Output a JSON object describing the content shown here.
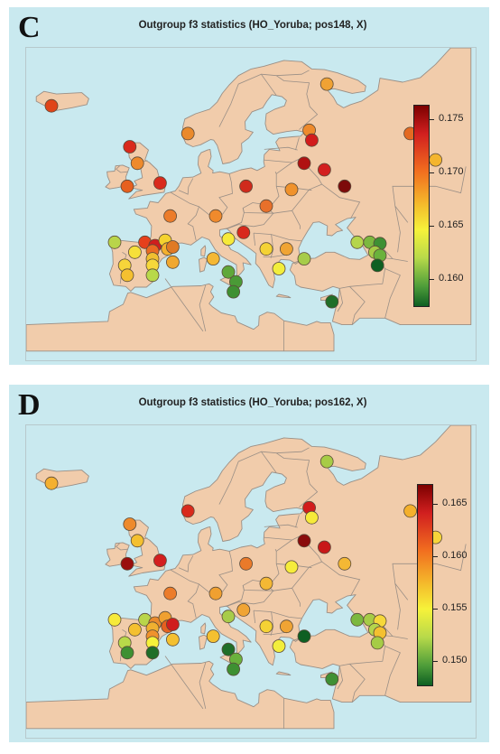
{
  "panels": [
    {
      "letter": "C",
      "title": "Outgroup f3 statistics (HO_Yoruba; pos148, X)",
      "legend": {
        "ticks": [
          "0.175",
          "0.170",
          "0.165",
          "0.160"
        ]
      },
      "points": [
        {
          "lon": -21.0,
          "lat": 64.2,
          "color": "#e04418"
        },
        {
          "lon": 33.5,
          "lat": 67.5,
          "color": "#f0a234"
        },
        {
          "lon": -5.5,
          "lat": 58.0,
          "color": "#d92a1c"
        },
        {
          "lon": 6.0,
          "lat": 60.0,
          "color": "#ea8a2c"
        },
        {
          "lon": -4.0,
          "lat": 55.5,
          "color": "#ee8a2c"
        },
        {
          "lon": 30.0,
          "lat": 60.5,
          "color": "#ee8a2c"
        },
        {
          "lon": 30.5,
          "lat": 59.0,
          "color": "#d21c1c"
        },
        {
          "lon": 50.0,
          "lat": 60.0,
          "color": "#e46a22"
        },
        {
          "lon": 29.0,
          "lat": 55.5,
          "color": "#b01212"
        },
        {
          "lon": 33.0,
          "lat": 54.5,
          "color": "#d31f1f"
        },
        {
          "lon": 37.0,
          "lat": 52.0,
          "color": "#7d0a0a"
        },
        {
          "lon": 55.0,
          "lat": 56.0,
          "color": "#f4b52e"
        },
        {
          "lon": -6.0,
          "lat": 52.0,
          "color": "#e6601f"
        },
        {
          "lon": 0.5,
          "lat": 52.5,
          "color": "#d92a1c"
        },
        {
          "lon": 17.5,
          "lat": 52.0,
          "color": "#d02a1c"
        },
        {
          "lon": 26.5,
          "lat": 51.5,
          "color": "#f0922c"
        },
        {
          "lon": 21.5,
          "lat": 49.0,
          "color": "#e8702a"
        },
        {
          "lon": 2.5,
          "lat": 47.5,
          "color": "#ec7c2a"
        },
        {
          "lon": 11.5,
          "lat": 47.5,
          "color": "#f08a2c"
        },
        {
          "lon": -8.5,
          "lat": 43.5,
          "color": "#b9d54a"
        },
        {
          "lon": -2.5,
          "lat": 43.5,
          "color": "#e6401c"
        },
        {
          "lon": -0.5,
          "lat": 43.0,
          "color": "#cf1e1e"
        },
        {
          "lon": 1.5,
          "lat": 43.8,
          "color": "#f4d22e"
        },
        {
          "lon": -1.0,
          "lat": 42.2,
          "color": "#ea6a22"
        },
        {
          "lon": 2.0,
          "lat": 42.5,
          "color": "#f4b02c"
        },
        {
          "lon": 3.0,
          "lat": 42.8,
          "color": "#e07a24"
        },
        {
          "lon": -4.5,
          "lat": 42.0,
          "color": "#f6e03a"
        },
        {
          "lon": -1.0,
          "lat": 41.0,
          "color": "#f0c030"
        },
        {
          "lon": -6.5,
          "lat": 40.0,
          "color": "#f6d53a"
        },
        {
          "lon": -6.0,
          "lat": 38.5,
          "color": "#f4c030"
        },
        {
          "lon": -1.0,
          "lat": 40.0,
          "color": "#f6d83a"
        },
        {
          "lon": -1.0,
          "lat": 38.5,
          "color": "#b8d94a"
        },
        {
          "lon": 3.0,
          "lat": 40.5,
          "color": "#f0a830"
        },
        {
          "lon": 14.0,
          "lat": 44.0,
          "color": "#f6ea3a"
        },
        {
          "lon": 17.0,
          "lat": 45.0,
          "color": "#d8281c"
        },
        {
          "lon": 11.0,
          "lat": 41.0,
          "color": "#f4b834"
        },
        {
          "lon": 14.0,
          "lat": 39.0,
          "color": "#5fa83a"
        },
        {
          "lon": 15.5,
          "lat": 37.5,
          "color": "#4a9a36"
        },
        {
          "lon": 15.0,
          "lat": 36.0,
          "color": "#3e9032"
        },
        {
          "lon": 21.5,
          "lat": 42.5,
          "color": "#f4d234"
        },
        {
          "lon": 25.5,
          "lat": 42.5,
          "color": "#f0a434"
        },
        {
          "lon": 24.0,
          "lat": 39.5,
          "color": "#f2ee3c"
        },
        {
          "lon": 29.0,
          "lat": 41.0,
          "color": "#a7cc4a"
        },
        {
          "lon": 34.5,
          "lat": 34.5,
          "color": "#1f6e28"
        },
        {
          "lon": 39.5,
          "lat": 43.5,
          "color": "#b5d54c"
        },
        {
          "lon": 42.0,
          "lat": 43.5,
          "color": "#7cb83f"
        },
        {
          "lon": 44.0,
          "lat": 43.3,
          "color": "#3e9034"
        },
        {
          "lon": 43.0,
          "lat": 42.0,
          "color": "#a6cc46"
        },
        {
          "lon": 44.0,
          "lat": 41.5,
          "color": "#6ab23c"
        },
        {
          "lon": 43.5,
          "lat": 40.0,
          "color": "#0e5f22"
        }
      ]
    },
    {
      "letter": "D",
      "title": "Outgroup f3 statistics (HO_Yoruba; pos162, X)",
      "legend": {
        "ticks": [
          "0.165",
          "0.160",
          "0.155",
          "0.150"
        ]
      },
      "points": [
        {
          "lon": -21.0,
          "lat": 64.2,
          "color": "#f4b030"
        },
        {
          "lon": 33.5,
          "lat": 67.5,
          "color": "#a7cc46"
        },
        {
          "lon": -5.5,
          "lat": 58.0,
          "color": "#ee8a2c"
        },
        {
          "lon": 6.0,
          "lat": 60.0,
          "color": "#d92a1c"
        },
        {
          "lon": -4.0,
          "lat": 55.5,
          "color": "#f4c030"
        },
        {
          "lon": 30.0,
          "lat": 60.5,
          "color": "#d21c1c"
        },
        {
          "lon": 30.5,
          "lat": 59.0,
          "color": "#f6ea3a"
        },
        {
          "lon": 50.0,
          "lat": 60.0,
          "color": "#f4b02c"
        },
        {
          "lon": 29.0,
          "lat": 55.5,
          "color": "#8a0c0c"
        },
        {
          "lon": 33.0,
          "lat": 54.5,
          "color": "#c81818"
        },
        {
          "lon": 37.0,
          "lat": 52.0,
          "color": "#f4b834"
        },
        {
          "lon": 55.0,
          "lat": 56.0,
          "color": "#f6d53a"
        },
        {
          "lon": -6.0,
          "lat": 52.0,
          "color": "#9a0e0e"
        },
        {
          "lon": 0.5,
          "lat": 52.5,
          "color": "#d31f1f"
        },
        {
          "lon": 17.5,
          "lat": 52.0,
          "color": "#ea7a2a"
        },
        {
          "lon": 26.5,
          "lat": 51.5,
          "color": "#f6ec3a"
        },
        {
          "lon": 21.5,
          "lat": 49.0,
          "color": "#f4b834"
        },
        {
          "lon": 2.5,
          "lat": 47.5,
          "color": "#ec7c2a"
        },
        {
          "lon": 11.5,
          "lat": 47.5,
          "color": "#f0a030"
        },
        {
          "lon": -8.5,
          "lat": 43.5,
          "color": "#f6ea3a"
        },
        {
          "lon": -2.5,
          "lat": 43.5,
          "color": "#b9d54a"
        },
        {
          "lon": -0.5,
          "lat": 43.0,
          "color": "#ea8a2c"
        },
        {
          "lon": 1.5,
          "lat": 43.8,
          "color": "#f0a030"
        },
        {
          "lon": -1.0,
          "lat": 42.2,
          "color": "#f0b030"
        },
        {
          "lon": 2.0,
          "lat": 42.5,
          "color": "#e6601f"
        },
        {
          "lon": 3.0,
          "lat": 42.8,
          "color": "#cf1e1e"
        },
        {
          "lon": -4.5,
          "lat": 42.0,
          "color": "#f4c030"
        },
        {
          "lon": -1.0,
          "lat": 41.0,
          "color": "#f0922c"
        },
        {
          "lon": -6.5,
          "lat": 40.0,
          "color": "#b8d94a"
        },
        {
          "lon": -6.0,
          "lat": 38.5,
          "color": "#3e9032"
        },
        {
          "lon": -1.0,
          "lat": 40.0,
          "color": "#f6f23a"
        },
        {
          "lon": -1.0,
          "lat": 38.5,
          "color": "#1f6e28"
        },
        {
          "lon": 3.0,
          "lat": 40.5,
          "color": "#f4c030"
        },
        {
          "lon": 14.0,
          "lat": 44.0,
          "color": "#a7cc4a"
        },
        {
          "lon": 17.0,
          "lat": 45.0,
          "color": "#f0a434"
        },
        {
          "lon": 11.0,
          "lat": 41.0,
          "color": "#f4c030"
        },
        {
          "lon": 14.0,
          "lat": 39.0,
          "color": "#1f6e28"
        },
        {
          "lon": 15.5,
          "lat": 37.5,
          "color": "#6ab23c"
        },
        {
          "lon": 15.0,
          "lat": 36.0,
          "color": "#3e9032"
        },
        {
          "lon": 21.5,
          "lat": 42.5,
          "color": "#f4d234"
        },
        {
          "lon": 25.5,
          "lat": 42.5,
          "color": "#f0a434"
        },
        {
          "lon": 24.0,
          "lat": 39.5,
          "color": "#f2ee3c"
        },
        {
          "lon": 29.0,
          "lat": 41.0,
          "color": "#0e5f22"
        },
        {
          "lon": 34.5,
          "lat": 34.5,
          "color": "#3e9034"
        },
        {
          "lon": 39.5,
          "lat": 43.5,
          "color": "#7cb83f"
        },
        {
          "lon": 42.0,
          "lat": 43.5,
          "color": "#a6cc46"
        },
        {
          "lon": 44.0,
          "lat": 43.3,
          "color": "#f6d83a"
        },
        {
          "lon": 43.0,
          "lat": 42.0,
          "color": "#b5d54c"
        },
        {
          "lon": 44.0,
          "lat": 41.5,
          "color": "#f4c030"
        },
        {
          "lon": 43.5,
          "lat": 40.0,
          "color": "#a6cc46"
        }
      ]
    }
  ],
  "colors": {
    "sea": "#c9e9ef",
    "land": "#f1ccab",
    "border": "#9a8f86"
  }
}
